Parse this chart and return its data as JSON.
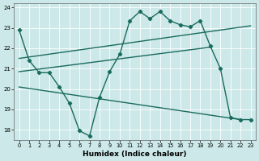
{
  "xlabel": "Humidex (Indice chaleur)",
  "bg_color": "#cce8e8",
  "line_color": "#1a6b5e",
  "xlim": [
    -0.5,
    23.5
  ],
  "ylim": [
    17.5,
    24.2
  ],
  "yticks": [
    18,
    19,
    20,
    21,
    22,
    23,
    24
  ],
  "xticks": [
    0,
    1,
    2,
    3,
    4,
    5,
    6,
    7,
    8,
    9,
    10,
    11,
    12,
    13,
    14,
    15,
    16,
    17,
    18,
    19,
    20,
    21,
    22,
    23
  ],
  "line1_x": [
    0,
    1,
    2,
    3,
    4,
    5,
    6,
    7,
    8,
    9,
    10,
    11,
    12,
    13,
    14,
    15,
    16,
    17,
    18,
    19,
    20,
    21,
    22,
    23
  ],
  "line1_y": [
    22.9,
    21.4,
    20.8,
    20.8,
    20.1,
    19.3,
    17.95,
    17.7,
    19.6,
    20.85,
    21.7,
    23.35,
    23.8,
    23.45,
    23.8,
    23.35,
    23.15,
    23.05,
    23.35,
    22.1,
    21.0,
    18.6,
    18.5,
    18.5
  ],
  "line2_x": [
    0,
    23
  ],
  "line2_y": [
    21.5,
    23.1
  ],
  "line3_x": [
    0,
    19
  ],
  "line3_y": [
    20.85,
    22.05
  ],
  "line4_x": [
    0,
    22
  ],
  "line4_y": [
    20.1,
    18.5
  ]
}
